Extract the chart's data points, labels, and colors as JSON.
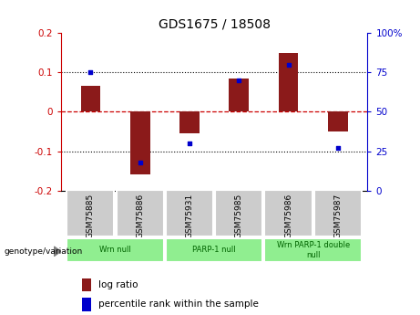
{
  "title": "GDS1675 / 18508",
  "samples": [
    "GSM75885",
    "GSM75886",
    "GSM75931",
    "GSM75985",
    "GSM75986",
    "GSM75987"
  ],
  "log_ratios": [
    0.065,
    -0.16,
    -0.055,
    0.085,
    0.15,
    -0.05
  ],
  "percentile_ranks": [
    75,
    18,
    30,
    70,
    80,
    27
  ],
  "group_data": [
    {
      "label": "Wrn null",
      "span": 2,
      "color": "#90EE90"
    },
    {
      "label": "PARP-1 null",
      "span": 2,
      "color": "#90EE90"
    },
    {
      "label": "Wrn PARP-1 double\nnull",
      "span": 2,
      "color": "#90EE90"
    }
  ],
  "bar_color": "#8B1A1A",
  "dot_color": "#0000CC",
  "ylim_left": [
    -0.2,
    0.2
  ],
  "ylim_right": [
    0,
    100
  ],
  "yticks_left": [
    -0.2,
    -0.1,
    0.0,
    0.1,
    0.2
  ],
  "yticks_right": [
    0,
    25,
    50,
    75,
    100
  ],
  "zero_line_color": "#CC0000",
  "gray_box_color": "#cccccc",
  "white_bg": "#ffffff",
  "plot_bg": "#ffffff",
  "bar_width": 0.4,
  "legend_labels": [
    "log ratio",
    "percentile rank within the sample"
  ],
  "genotype_label": "genotype/variation"
}
